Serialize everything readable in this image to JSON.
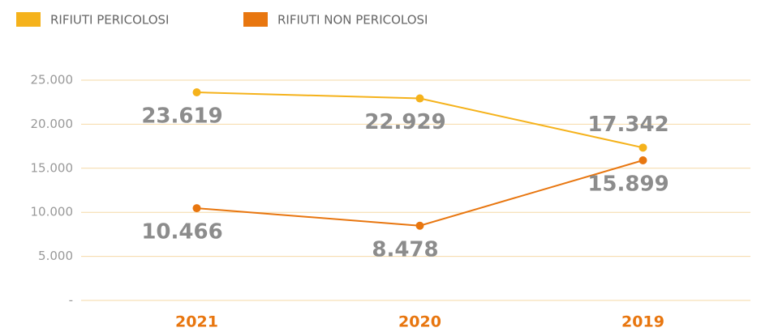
{
  "chart_data": {
    "type": "line",
    "categories": [
      "2021",
      "2020",
      "2019"
    ],
    "series": [
      {
        "name": "RIFIUTI PERICOLOSI",
        "color": "#f5b21b",
        "values": [
          23619,
          22929,
          17342
        ],
        "value_labels": [
          "23.619",
          "22.929",
          "17.342"
        ]
      },
      {
        "name": "RIFIUTI NON PERICOLOSI",
        "color": "#e8760f",
        "values": [
          10466,
          8478,
          15899
        ],
        "value_labels": [
          "10.466",
          "8.478",
          "15.899"
        ]
      }
    ],
    "ylim": [
      0,
      25000
    ],
    "yticks": [
      {
        "value": 0,
        "label": "-"
      },
      {
        "value": 5000,
        "label": "5.000"
      },
      {
        "value": 10000,
        "label": "10.000"
      },
      {
        "value": 15000,
        "label": "15.000"
      },
      {
        "value": 20000,
        "label": "20.000"
      },
      {
        "value": 25000,
        "label": "25.000"
      }
    ],
    "grid": true,
    "legend": "top"
  }
}
